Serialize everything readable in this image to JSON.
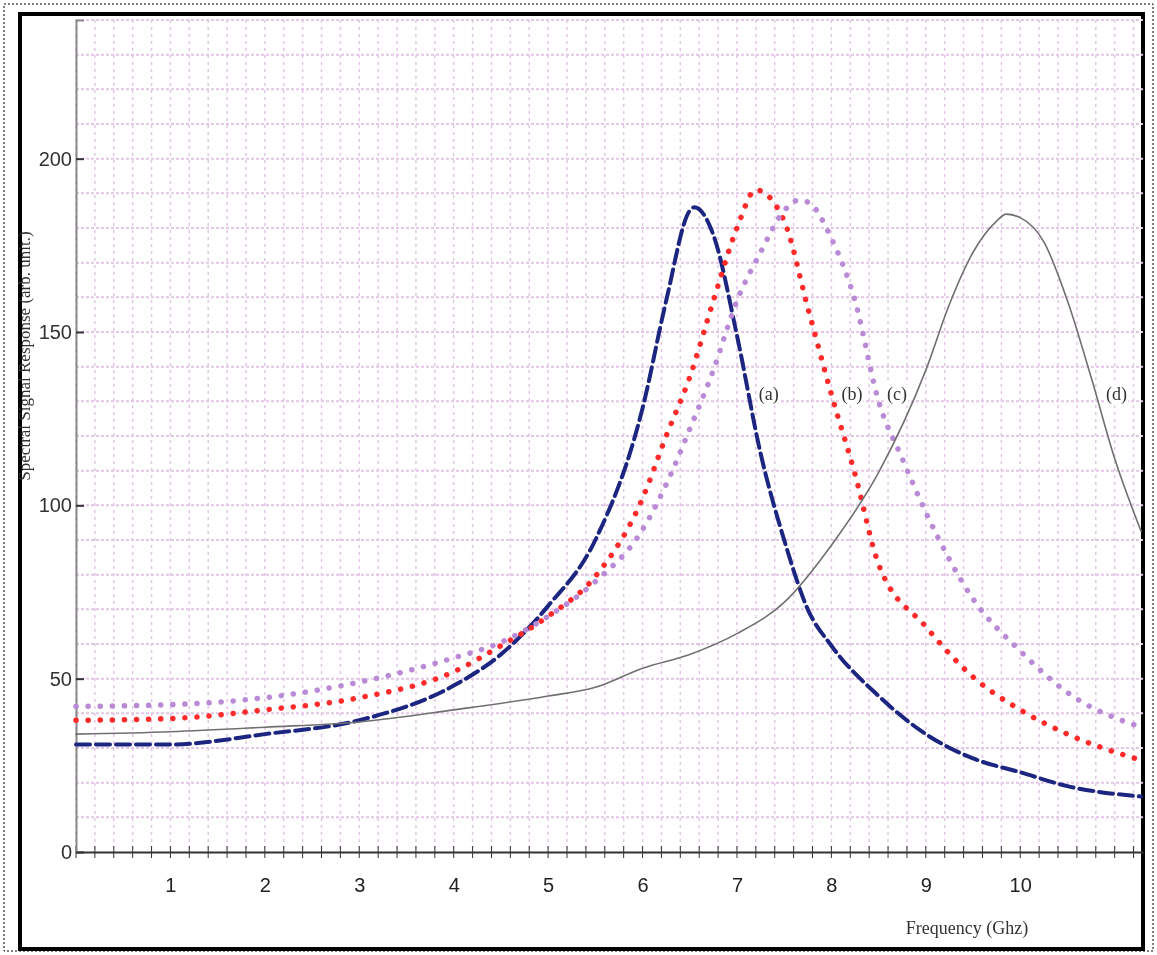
{
  "chart_data": {
    "type": "line",
    "xlabel": "Frequency (Ghz)",
    "ylabel": "Spectral Signal Response (arb. unit.)",
    "xlim": [
      0,
      11.3
    ],
    "ylim": [
      0,
      240
    ],
    "xticks": [
      1,
      2,
      3,
      4,
      5,
      6,
      7,
      8,
      9,
      10
    ],
    "yticks": [
      0,
      50,
      100,
      150,
      200
    ],
    "grid": true,
    "series": [
      {
        "name": "(a)",
        "color": "#1c2580",
        "line_style": "dashed",
        "x": [
          0,
          1,
          2,
          3,
          4,
          4.5,
          5,
          5.5,
          6,
          6.25,
          6.5,
          6.55,
          6.75,
          7,
          7.25,
          7.5,
          7.75,
          8,
          8.5,
          9,
          9.5,
          10,
          10.5,
          11.28
        ],
        "values": [
          31,
          31,
          34,
          38,
          48,
          57,
          71,
          90,
          128,
          159,
          185,
          186,
          178,
          149,
          115,
          90,
          70,
          59.5,
          45,
          34,
          27,
          23,
          19,
          16
        ]
      },
      {
        "name": "(b)",
        "color": "#ff2a2a",
        "line_style": "dotted",
        "x": [
          0,
          1,
          2,
          3,
          4,
          4.5,
          5,
          5.5,
          6,
          6.25,
          6.5,
          6.75,
          7,
          7.2,
          7.5,
          7.75,
          8,
          8.25,
          8.5,
          9,
          9.5,
          10,
          10.5,
          11.28
        ],
        "values": [
          38,
          38.5,
          41,
          44.5,
          52,
          59.5,
          68,
          79.5,
          102,
          120,
          137,
          159,
          180,
          191,
          182,
          157,
          132,
          109,
          83,
          65,
          50.5,
          41,
          34,
          26.5
        ]
      },
      {
        "name": "(c)",
        "color": "#b98ad6",
        "line_style": "dotted",
        "x": [
          0,
          1,
          2,
          3,
          4,
          4.5,
          5,
          5.5,
          6,
          6.25,
          6.5,
          6.75,
          7,
          7.25,
          7.5,
          7.65,
          7.75,
          8,
          8.25,
          8.5,
          8.75,
          9,
          9.5,
          10,
          10.5,
          11.28
        ],
        "values": [
          42,
          42.5,
          44.5,
          49,
          56,
          60.5,
          68,
          78,
          93,
          106,
          122,
          139,
          159,
          173,
          185,
          188,
          187.5,
          177,
          159,
          130,
          113.5,
          98,
          73,
          58,
          46,
          36
        ]
      },
      {
        "name": "(d)",
        "color": "#707070",
        "line_style": "solid",
        "x": [
          0,
          1,
          2,
          3,
          4,
          5,
          5.5,
          6,
          6.5,
          7,
          7.5,
          8,
          8.5,
          9,
          9.25,
          9.5,
          9.75,
          9.85,
          10,
          10.25,
          10.5,
          10.75,
          11,
          11.28
        ],
        "values": [
          34,
          34.7,
          36,
          37.5,
          41,
          45,
          47.5,
          53,
          57,
          63,
          72,
          88.5,
          109.5,
          139,
          158,
          173,
          182,
          184,
          183,
          176,
          159,
          137,
          113.5,
          92.5
        ]
      }
    ]
  }
}
